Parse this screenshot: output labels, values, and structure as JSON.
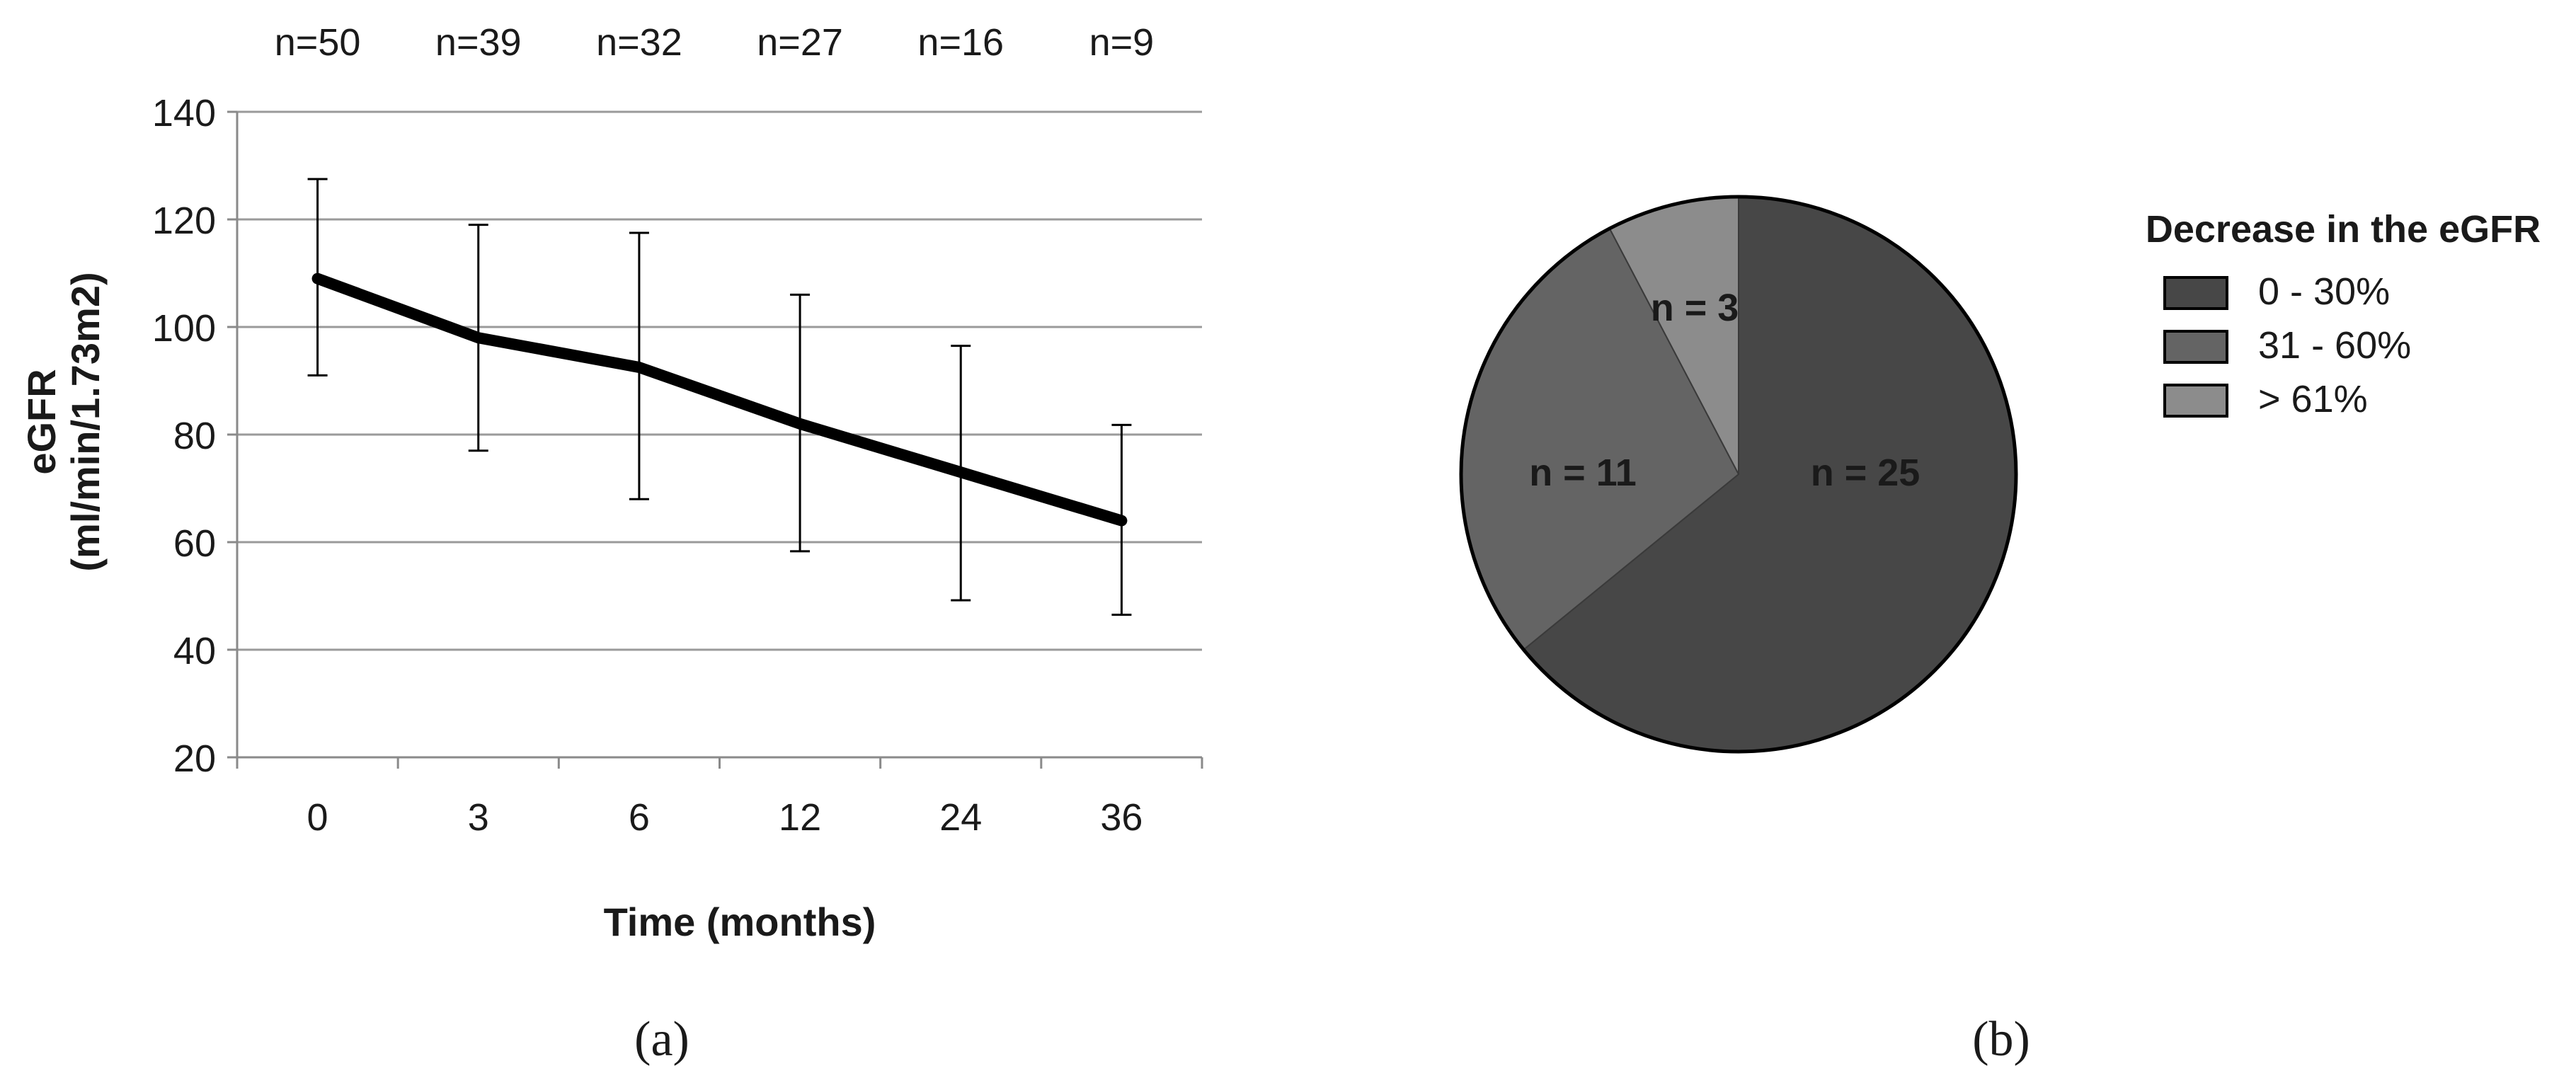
{
  "chart_data": [
    {
      "type": "line",
      "panel_label": "(a)",
      "xlabel": "Time (months)",
      "ylabel": "eGFR",
      "ylabel_unit": "(ml/min/1.73m2)",
      "categories": [
        "0",
        "3",
        "6",
        "12",
        "24",
        "36"
      ],
      "sample_sizes": [
        "n=50",
        "n=39",
        "n=32",
        "n=27",
        "n=16",
        "n=9"
      ],
      "yticks": [
        "20",
        "40",
        "60",
        "80",
        "100",
        "120",
        "140"
      ],
      "ylim": [
        20,
        140
      ],
      "grid": true,
      "series": [
        {
          "values": [
            109,
            98,
            92.5,
            82,
            73,
            64
          ],
          "error_upper": [
            127.5,
            119,
            117.5,
            106,
            96.5,
            81.8
          ],
          "error_lower": [
            91,
            77,
            68,
            58.3,
            49.2,
            46.5
          ]
        }
      ]
    },
    {
      "type": "pie",
      "panel_label": "(b)",
      "legend_title": "Decrease in the eGFR",
      "legend_position": "right",
      "slices": [
        {
          "label": "0 - 30%",
          "value": 25,
          "data_label": "n = 25",
          "color": "#474747"
        },
        {
          "label": "31 - 60%",
          "value": 11,
          "data_label": "n = 11",
          "color": "#646464"
        },
        {
          "label": "> 61%",
          "value": 3,
          "data_label": "n = 3",
          "color": "#8c8c8c"
        }
      ]
    }
  ]
}
